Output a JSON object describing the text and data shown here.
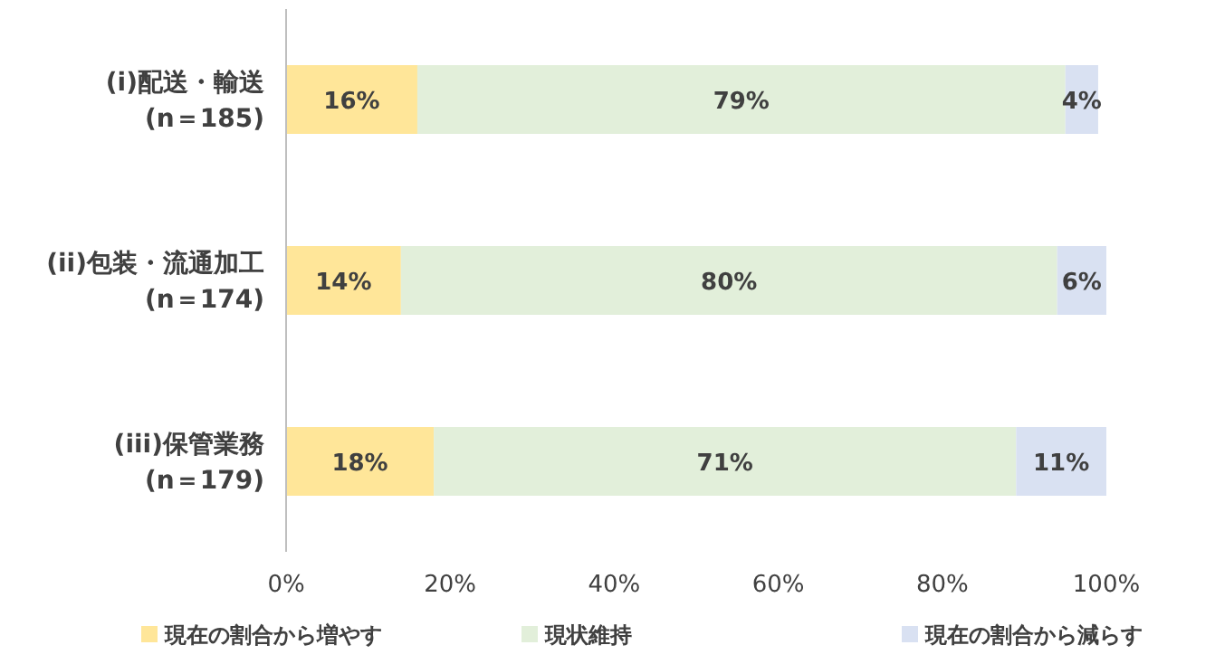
{
  "chart_data": {
    "type": "bar",
    "orientation": "horizontal",
    "stacked": true,
    "legend": "bottom",
    "grid": false,
    "categories": [
      "(i)配送・輸送\n(n＝185)",
      "(ii)包装・流通加工\n(n＝174)",
      "(iii)保管業務\n(n＝179)"
    ],
    "xlim": [
      0,
      100
    ],
    "xticks": [
      {
        "value": 0,
        "label": "0%"
      },
      {
        "value": 20,
        "label": "20%"
      },
      {
        "value": 40,
        "label": "40%"
      },
      {
        "value": 60,
        "label": "60%"
      },
      {
        "value": 80,
        "label": "80%"
      },
      {
        "value": 100,
        "label": "100%"
      }
    ],
    "series": [
      {
        "name": "現在の割合から増やす",
        "color": "#ffe699",
        "values": [
          16,
          14,
          18
        ],
        "value_labels": [
          "16%",
          "14%",
          "18%"
        ]
      },
      {
        "name": "現状維持",
        "color": "#e2efda",
        "values": [
          79,
          80,
          71
        ],
        "value_labels": [
          "79%",
          "80%",
          "71%"
        ]
      },
      {
        "name": "現在の割合から減らす",
        "color": "#d9e1f2",
        "values": [
          4,
          6,
          11
        ],
        "value_labels": [
          "4%",
          "6%",
          "11%"
        ]
      }
    ]
  }
}
